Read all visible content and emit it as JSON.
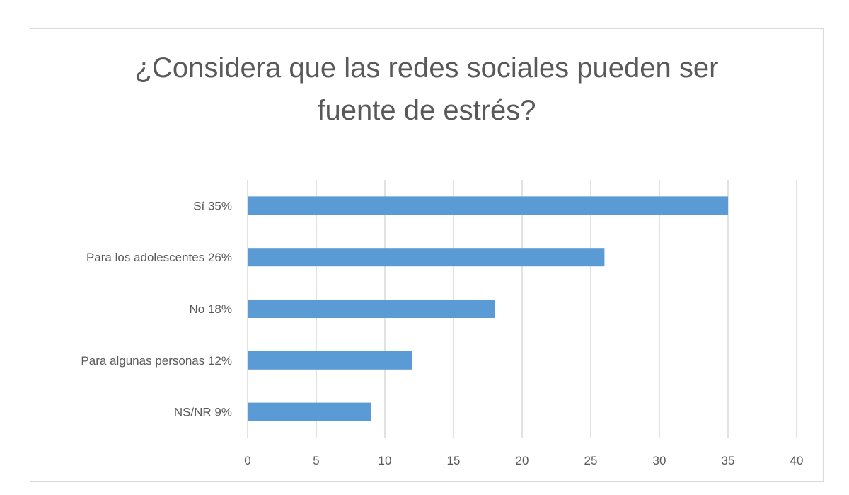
{
  "chart_data": {
    "type": "bar",
    "orientation": "horizontal",
    "title_lines": [
      "¿Considera que las redes sociales pueden ser",
      "fuente de estrés?"
    ],
    "categories": [
      "Sí  35%",
      "Para los adolescentes  26%",
      "No  18%",
      "Para algunas personas  12%",
      "NS/NR  9%"
    ],
    "values": [
      35,
      26,
      18,
      12,
      9
    ],
    "xlim": [
      0,
      40
    ],
    "xticks": [
      0,
      5,
      10,
      15,
      20,
      25,
      30,
      35,
      40
    ],
    "grid": true,
    "bar_color": "#5b9bd5",
    "xlabel": "",
    "ylabel": ""
  }
}
